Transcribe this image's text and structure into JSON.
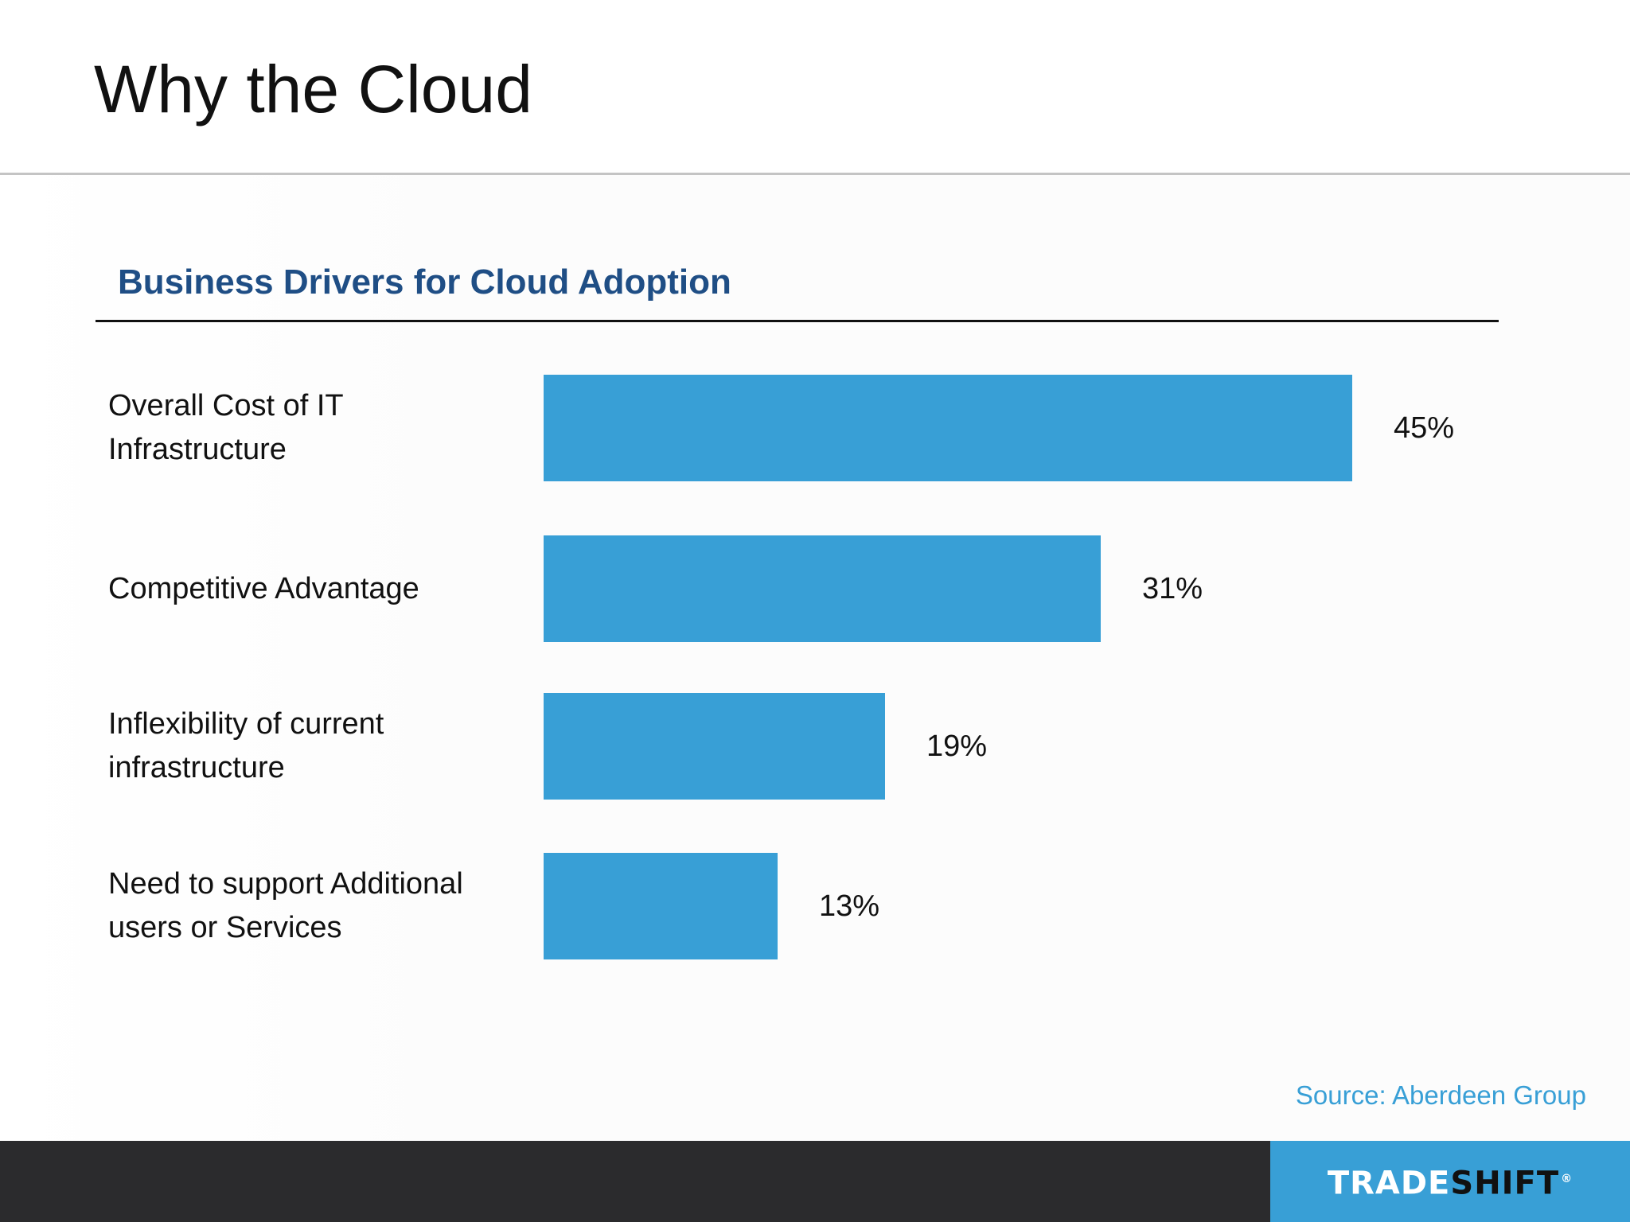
{
  "slide": {
    "title": "Why the Cloud",
    "source": "Source: Aberdeen Group"
  },
  "logo": {
    "part1": "TRADE",
    "part2": "SHIFT",
    "registered_mark": "®"
  },
  "colors": {
    "bar": "#389fd6",
    "chart_title": "#1f4e85",
    "footer": "#2b2b2d",
    "logo_background": "#389fd6"
  },
  "chart_data": {
    "type": "bar",
    "orientation": "horizontal",
    "title": "Business Drivers for Cloud Adoption",
    "categories": [
      "Overall Cost of IT Infrastructure",
      "Competitive  Advantage",
      "Inflexibility of current infrastructure",
      "Need to support Additional users or Services"
    ],
    "values": [
      45,
      31,
      19,
      13
    ],
    "value_labels": [
      "45%",
      "31%",
      "19%",
      "13%"
    ],
    "unit": "%",
    "xlim": [
      0,
      45
    ],
    "grid": false,
    "legend": "none"
  }
}
